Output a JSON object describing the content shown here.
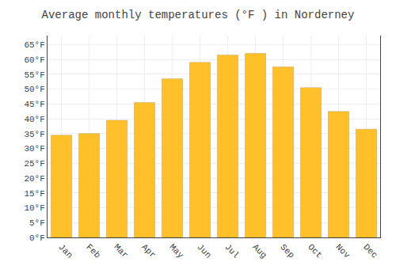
{
  "chart_data": {
    "type": "bar",
    "title": "Average monthly temperatures (°F ) in Norderney",
    "categories": [
      "Jan",
      "Feb",
      "Mar",
      "Apr",
      "May",
      "Jun",
      "Jul",
      "Aug",
      "Sep",
      "Oct",
      "Nov",
      "Dec"
    ],
    "values": [
      34.5,
      35.0,
      39.5,
      45.5,
      53.5,
      59.0,
      61.5,
      62.0,
      57.5,
      50.5,
      42.5,
      36.5
    ],
    "color": "#FFC02A",
    "ylim": [
      0,
      68
    ],
    "yticks": [
      {
        "value": 0,
        "label": "0°F"
      },
      {
        "value": 5,
        "label": "5°F"
      },
      {
        "value": 10,
        "label": "10°F"
      },
      {
        "value": 15,
        "label": "15°F"
      },
      {
        "value": 20,
        "label": "20°F"
      },
      {
        "value": 25,
        "label": "25°F"
      },
      {
        "value": 30,
        "label": "30°F"
      },
      {
        "value": 35,
        "label": "35°F"
      },
      {
        "value": 40,
        "label": "40°F"
      },
      {
        "value": 45,
        "label": "45°F"
      },
      {
        "value": 50,
        "label": "50°F"
      },
      {
        "value": 55,
        "label": "55°F"
      },
      {
        "value": 60,
        "label": "60°F"
      },
      {
        "value": 65,
        "label": "65°F"
      }
    ],
    "grid": true
  }
}
